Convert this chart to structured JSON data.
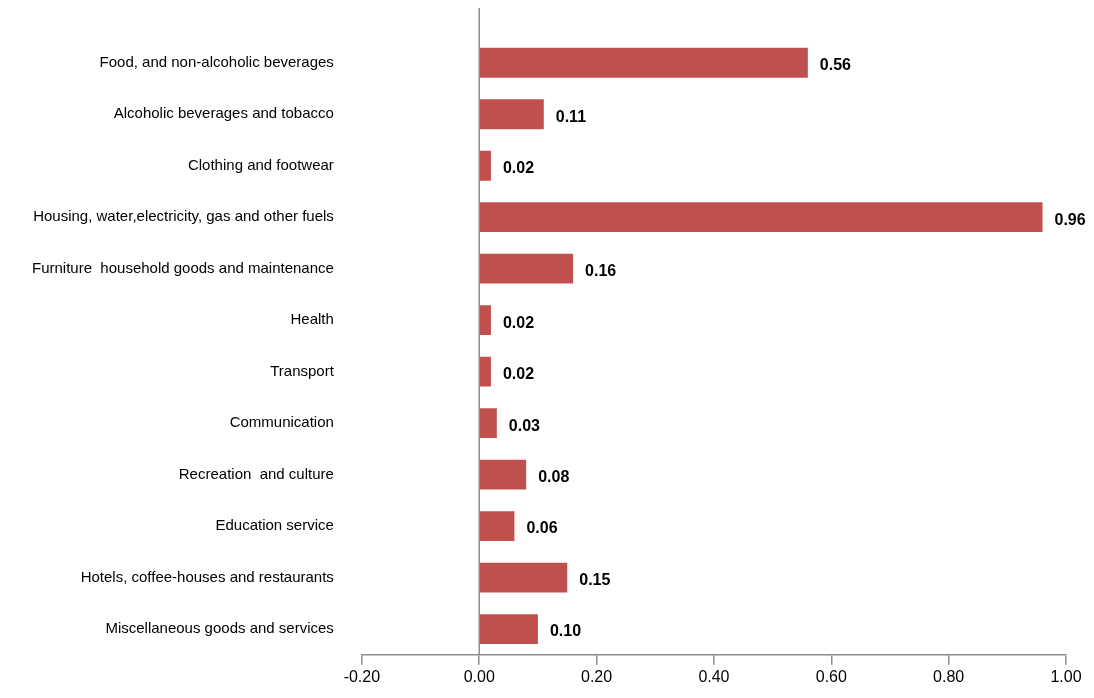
{
  "chart_data": {
    "type": "bar",
    "orientation": "horizontal",
    "categories": [
      "Food, and non-alcoholic beverages",
      "Alcoholic beverages and tobacco",
      "Clothing and footwear",
      "Housing, water,electricity, gas and other fuels",
      "Furniture  household goods and maintenance",
      "Health",
      "Transport",
      "Communication",
      "Recreation  and culture",
      "Education service",
      "Hotels, coffee-houses and restaurants",
      "Miscellaneous goods and services"
    ],
    "values": [
      0.56,
      0.11,
      0.02,
      0.96,
      0.16,
      0.02,
      0.02,
      0.03,
      0.08,
      0.06,
      0.15,
      0.1
    ],
    "value_labels": [
      "0.56",
      "0.11",
      "0.02",
      "0.96",
      "0.16",
      "0.02",
      "0.02",
      "0.03",
      "0.08",
      "0.06",
      "0.15",
      "0.10"
    ],
    "color": "#c0504d",
    "xlim": [
      -0.2,
      1.0
    ],
    "xticks": [
      {
        "value": -0.2,
        "label": "-0.20"
      },
      {
        "value": 0,
        "label": "0.00"
      },
      {
        "value": 0.2,
        "label": "0.20"
      },
      {
        "value": 0.4,
        "label": "0.40"
      },
      {
        "value": 0.6,
        "label": "0.60"
      },
      {
        "value": 0.8,
        "label": "0.80"
      },
      {
        "value": 1.0,
        "label": "1.00"
      }
    ],
    "legend": false
  }
}
